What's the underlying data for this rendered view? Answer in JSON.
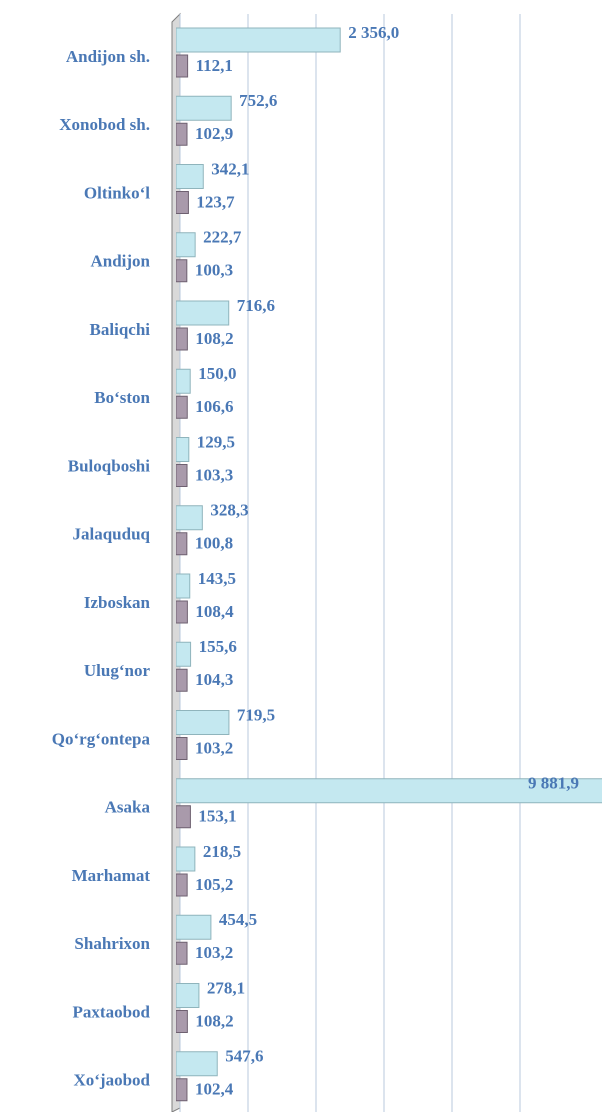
{
  "chart_data": {
    "type": "bar",
    "orientation": "horizontal",
    "categories": [
      "Andijon sh.",
      "Xonobod sh.",
      "Oltinko‘l",
      "Andijon",
      "Baliqchi",
      "Bo‘ston",
      "Buloqboshi",
      "Jalaquduq",
      "Izboskan",
      "Ulug‘nor",
      "Qo‘rg‘ontepa",
      "Asaka",
      "Marhamat",
      "Shahrixon",
      "Paxtaobod",
      "Xo‘jaobod"
    ],
    "series": [
      {
        "color": "#c4e8f0",
        "values": [
          2356.0,
          752.6,
          342.1,
          222.7,
          716.6,
          150.0,
          129.5,
          328.3,
          143.5,
          155.6,
          719.5,
          9881.9,
          218.5,
          454.5,
          278.1,
          547.6
        ],
        "value_labels": [
          "2 356,0",
          "752,6",
          "342,1",
          "222,7",
          "716,6",
          "150,0",
          "129,5",
          "328,3",
          "143,5",
          "155,6",
          "719,5",
          "9 881,9",
          "218,5",
          "454,5",
          "278,1",
          "547,6"
        ]
      },
      {
        "color": "#a99aab",
        "values": [
          112.1,
          102.9,
          123.7,
          100.3,
          108.2,
          106.6,
          103.3,
          100.8,
          108.4,
          104.3,
          103.2,
          153.1,
          105.2,
          103.2,
          108.2,
          102.4
        ],
        "value_labels": [
          "112,1",
          "102,9",
          "123,7",
          "100,3",
          "108,2",
          "106,6",
          "103,3",
          "100,8",
          "108,4",
          "104,3",
          "103,2",
          "153,1",
          "105,2",
          "103,2",
          "108,2",
          "102,4"
        ]
      }
    ],
    "xlim": [
      0,
      5000
    ],
    "xticks": [
      0,
      1000,
      2000,
      3000,
      4000,
      5000
    ],
    "grid": true
  }
}
